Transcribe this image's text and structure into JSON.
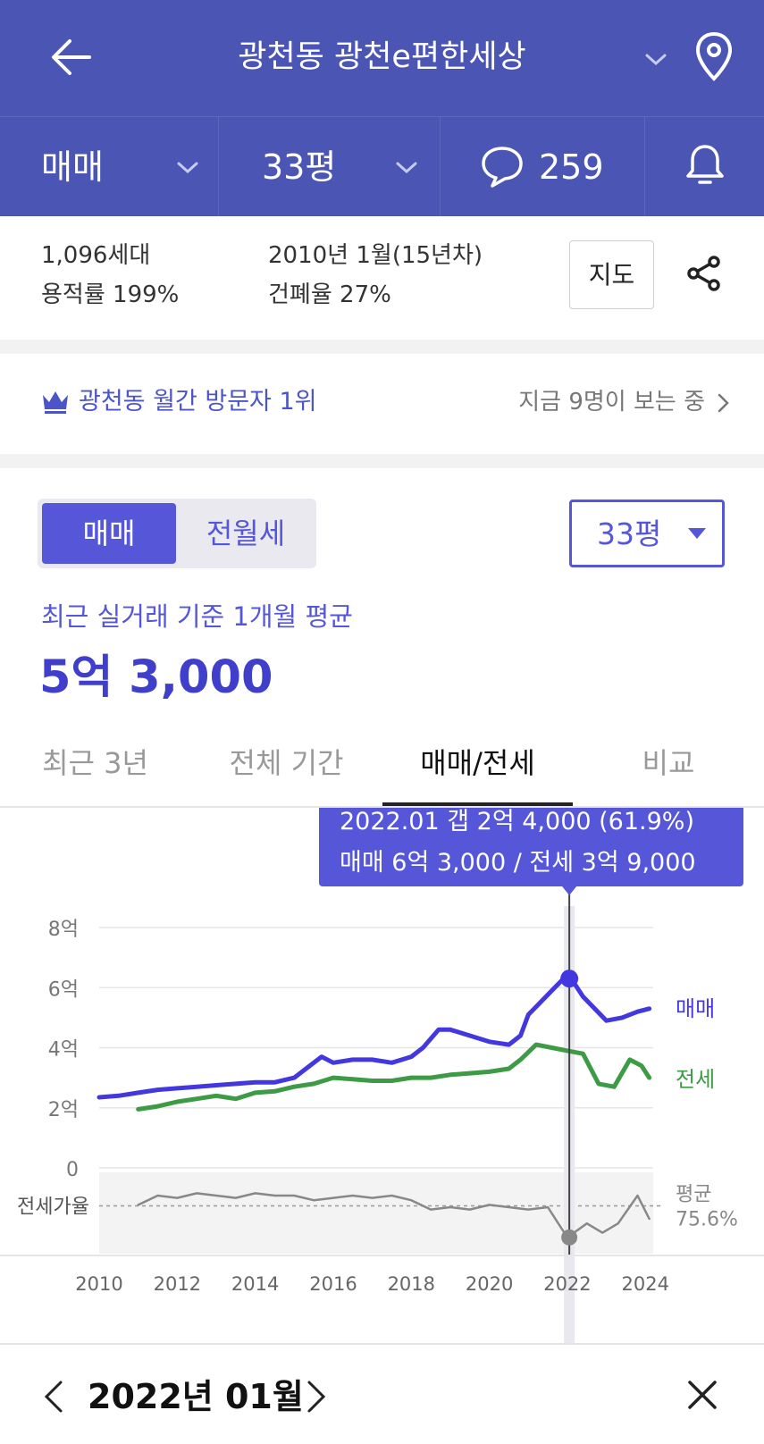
{
  "header": {
    "title": "광천동 광천e편한세상",
    "tab_type": "매매",
    "tab_size": "33평",
    "comment_count": "259"
  },
  "info": {
    "households": "1,096세대",
    "far": "용적률 199%",
    "built": "2010년 1월(15년차)",
    "bcr": "건폐율 27%",
    "map_label": "지도"
  },
  "rank": {
    "label": "광천동 월간 방문자 1위",
    "viewers": "지금 9명이 보는 중"
  },
  "price": {
    "seg_sale": "매매",
    "seg_rent": "전월세",
    "size_select": "33평",
    "avg_label": "최근 실거래 기준 1개월 평균",
    "avg_value": "5억 3,000"
  },
  "tabs": [
    "최근 3년",
    "전체 기간",
    "매매/전세",
    "비교"
  ],
  "tooltip": {
    "line1": "2022.01  갭 2억 4,000 (61.9%)",
    "line2": "매매 6억 3,000 / 전세 3억 9,000"
  },
  "chart_data": {
    "type": "line",
    "x_ticks": [
      "2010",
      "2012",
      "2014",
      "2016",
      "2018",
      "2020",
      "2022",
      "2024"
    ],
    "y_ticks": [
      "8억",
      "6억",
      "4억",
      "2억",
      "0"
    ],
    "ratio_label": "전세가율",
    "avg_label": "평균",
    "avg_value": "75.6%",
    "series": [
      {
        "name": "매매",
        "color": "#4338e0",
        "points": [
          [
            2010.0,
            2.35
          ],
          [
            2010.5,
            2.4
          ],
          [
            2011.0,
            2.5
          ],
          [
            2011.5,
            2.6
          ],
          [
            2012.0,
            2.65
          ],
          [
            2012.5,
            2.7
          ],
          [
            2013.0,
            2.75
          ],
          [
            2013.5,
            2.8
          ],
          [
            2014.0,
            2.85
          ],
          [
            2014.5,
            2.85
          ],
          [
            2015.0,
            3.0
          ],
          [
            2015.3,
            3.3
          ],
          [
            2015.7,
            3.7
          ],
          [
            2016.0,
            3.5
          ],
          [
            2016.5,
            3.6
          ],
          [
            2017.0,
            3.6
          ],
          [
            2017.5,
            3.5
          ],
          [
            2018.0,
            3.7
          ],
          [
            2018.3,
            4.0
          ],
          [
            2018.7,
            4.6
          ],
          [
            2019.0,
            4.6
          ],
          [
            2019.5,
            4.4
          ],
          [
            2020.0,
            4.2
          ],
          [
            2020.5,
            4.1
          ],
          [
            2020.8,
            4.4
          ],
          [
            2021.0,
            5.1
          ],
          [
            2021.3,
            5.5
          ],
          [
            2021.6,
            5.9
          ],
          [
            2021.9,
            6.3
          ],
          [
            2022.1,
            6.3
          ],
          [
            2022.4,
            5.7
          ],
          [
            2022.7,
            5.3
          ],
          [
            2023.0,
            4.9
          ],
          [
            2023.4,
            5.0
          ],
          [
            2023.8,
            5.2
          ],
          [
            2024.1,
            5.3
          ]
        ]
      },
      {
        "name": "전세",
        "color": "#3d9a45",
        "points": [
          [
            2011.0,
            1.95
          ],
          [
            2011.5,
            2.05
          ],
          [
            2012.0,
            2.2
          ],
          [
            2012.5,
            2.3
          ],
          [
            2013.0,
            2.4
          ],
          [
            2013.5,
            2.3
          ],
          [
            2014.0,
            2.5
          ],
          [
            2014.5,
            2.55
          ],
          [
            2015.0,
            2.7
          ],
          [
            2015.5,
            2.8
          ],
          [
            2016.0,
            3.0
          ],
          [
            2016.5,
            2.95
          ],
          [
            2017.0,
            2.9
          ],
          [
            2017.5,
            2.9
          ],
          [
            2018.0,
            3.0
          ],
          [
            2018.5,
            3.0
          ],
          [
            2019.0,
            3.1
          ],
          [
            2019.5,
            3.15
          ],
          [
            2020.0,
            3.2
          ],
          [
            2020.5,
            3.3
          ],
          [
            2020.8,
            3.6
          ],
          [
            2021.2,
            4.1
          ],
          [
            2021.6,
            4.0
          ],
          [
            2022.0,
            3.9
          ],
          [
            2022.4,
            3.8
          ],
          [
            2022.8,
            2.8
          ],
          [
            2023.2,
            2.7
          ],
          [
            2023.6,
            3.6
          ],
          [
            2023.9,
            3.4
          ],
          [
            2024.1,
            3.0
          ]
        ]
      },
      {
        "name": "전세가율",
        "color": "#888888",
        "points": [
          [
            2011.0,
            76
          ],
          [
            2011.5,
            80
          ],
          [
            2012.0,
            79
          ],
          [
            2012.5,
            81
          ],
          [
            2013.0,
            80
          ],
          [
            2013.5,
            79
          ],
          [
            2014.0,
            81
          ],
          [
            2014.5,
            80
          ],
          [
            2015.0,
            80
          ],
          [
            2015.5,
            78
          ],
          [
            2016.0,
            79
          ],
          [
            2016.5,
            80
          ],
          [
            2017.0,
            79
          ],
          [
            2017.5,
            80
          ],
          [
            2018.0,
            78
          ],
          [
            2018.5,
            74
          ],
          [
            2019.0,
            75
          ],
          [
            2019.5,
            74
          ],
          [
            2020.0,
            76
          ],
          [
            2020.5,
            75
          ],
          [
            2021.0,
            74
          ],
          [
            2021.5,
            75
          ],
          [
            2022.0,
            62
          ],
          [
            2022.5,
            68
          ],
          [
            2022.9,
            64
          ],
          [
            2023.3,
            68
          ],
          [
            2023.8,
            80
          ],
          [
            2024.1,
            70
          ]
        ]
      }
    ],
    "selected_x": 2022.05,
    "xlim": [
      2010,
      2024.2
    ],
    "ylim": [
      0,
      8
    ]
  },
  "footer": {
    "month": "2022년 01월"
  },
  "colors": {
    "header_bg": "#4b55b4",
    "accent": "#5557d8",
    "sale": "#4338e0",
    "jeonse": "#3d9a45"
  }
}
